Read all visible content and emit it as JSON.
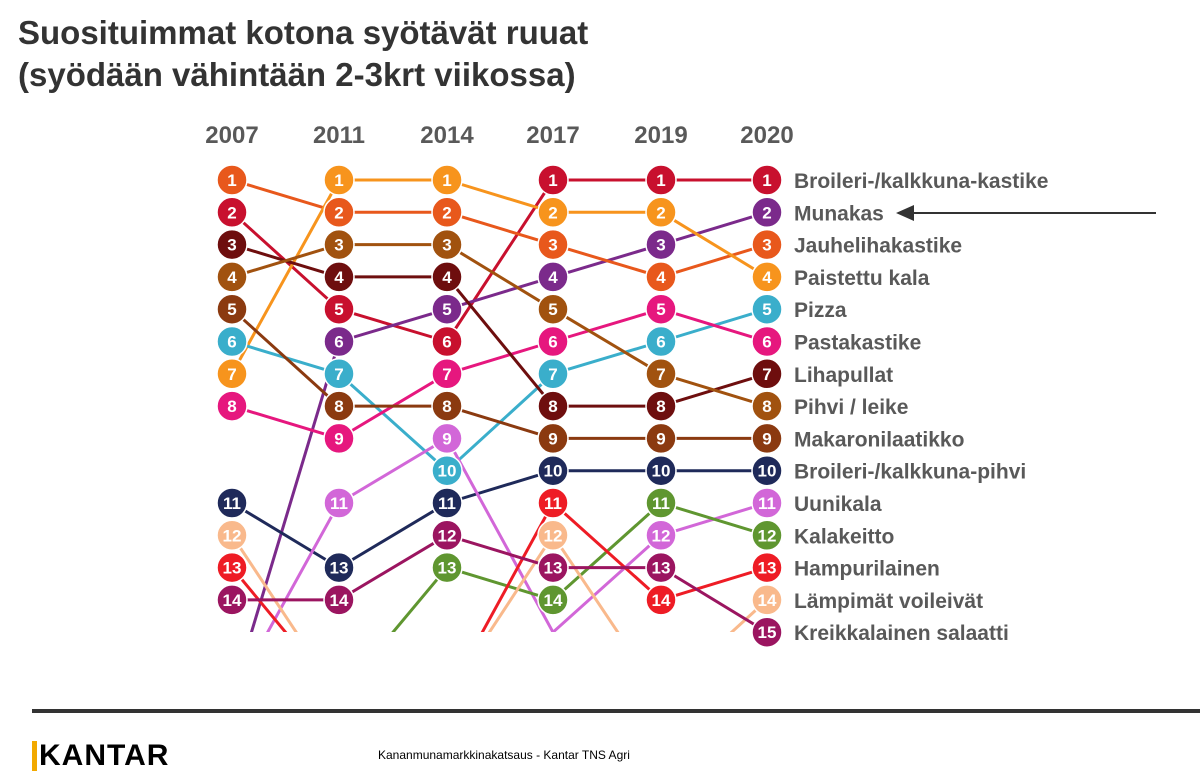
{
  "title": {
    "line1": "Suosituimmat kotona syötävät ruuat",
    "line2": "(syödään vähintään 2-3krt viikossa)"
  },
  "footer": {
    "brand": "KANTAR",
    "source": "Kananmunamarkkinakatsaus - Kantar TNS Agri",
    "brand_accent_color": "#f2a900"
  },
  "annotation": {
    "target": "Munakas",
    "type": "arrow"
  },
  "chart_data": {
    "type": "line",
    "subtype": "bump",
    "years": [
      "2007",
      "2011",
      "2014",
      "2017",
      "2019",
      "2020"
    ],
    "y_axis": {
      "reversed": true,
      "range": [
        1,
        15
      ],
      "shown_ranks": 14,
      "note": "ranks below 14 are cut off"
    },
    "series": [
      {
        "name": "Broileri-/kalkkuna-kastike",
        "color": "#c8102e",
        "ranks": [
          2,
          5,
          6,
          1,
          1,
          1
        ]
      },
      {
        "name": "Munakas",
        "color": "#7b2a8b",
        "ranks": [
          17,
          6,
          5,
          4,
          3,
          2
        ]
      },
      {
        "name": "Jauhelihakastike",
        "color": "#e8581c",
        "ranks": [
          1,
          2,
          2,
          3,
          4,
          3
        ]
      },
      {
        "name": "Paistettu kala",
        "color": "#f7941d",
        "ranks": [
          7,
          1,
          1,
          2,
          2,
          4
        ]
      },
      {
        "name": "Pizza",
        "color": "#3aaecb",
        "ranks": [
          6,
          7,
          10,
          7,
          6,
          5
        ]
      },
      {
        "name": "Pastakastike",
        "color": "#e6177e",
        "ranks": [
          8,
          9,
          7,
          6,
          5,
          6
        ]
      },
      {
        "name": "Lihapullat",
        "color": "#6e0e0e",
        "ranks": [
          3,
          4,
          4,
          8,
          8,
          7
        ]
      },
      {
        "name": "Pihvi / leike",
        "color": "#a1520f",
        "ranks": [
          4,
          3,
          3,
          5,
          7,
          8
        ]
      },
      {
        "name": "Makaronilaatikko",
        "color": "#8b3a10",
        "ranks": [
          5,
          8,
          8,
          9,
          9,
          9
        ]
      },
      {
        "name": "Broileri-/kalkkuna-pihvi",
        "color": "#1f2a5a",
        "ranks": [
          11,
          13,
          11,
          10,
          10,
          10
        ]
      },
      {
        "name": "Uunikala",
        "color": "#d267d8",
        "ranks": [
          17,
          11,
          9,
          15,
          12,
          11
        ]
      },
      {
        "name": "Kalakeitto",
        "color": "#5f9630",
        "ranks": [
          17,
          17,
          13,
          14,
          11,
          12
        ]
      },
      {
        "name": "Hampurilainen",
        "color": "#ee1c25",
        "ranks": [
          13,
          17,
          17,
          11,
          14,
          13
        ]
      },
      {
        "name": "Lämpimät voileivät",
        "color": "#f9b98c",
        "ranks": [
          12,
          17,
          17,
          12,
          17,
          14
        ]
      },
      {
        "name": "Kreikkalainen salaatti",
        "color": "#9b1560",
        "ranks": [
          14,
          14,
          12,
          13,
          13,
          15
        ]
      }
    ]
  }
}
